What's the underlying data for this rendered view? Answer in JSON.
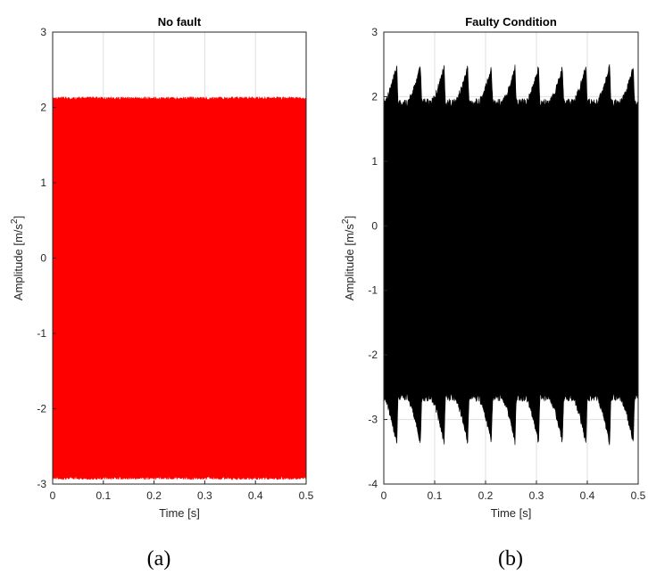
{
  "chart_data": [
    {
      "type": "area",
      "title": "No fault",
      "caption": "(a)",
      "xlabel": "Time [s]",
      "ylabel": "Amplitude [m/s",
      "ylabel_sup": "2",
      "ylabel_close": "]",
      "xlim": [
        0,
        0.5
      ],
      "ylim": [
        -3,
        3
      ],
      "xticks": [
        0,
        0.1,
        0.2,
        0.3,
        0.4,
        0.5
      ],
      "xtick_labels": [
        "0",
        "0.1",
        "0.2",
        "0.3",
        "0.4",
        "0.5"
      ],
      "yticks": [
        -3,
        -2,
        -1,
        0,
        1,
        2,
        3
      ],
      "ytick_labels": [
        "-3",
        "-2",
        "-1",
        "0",
        "1",
        "2",
        "3"
      ],
      "grid": true,
      "color": "#ff0000",
      "series": [
        {
          "envelope_upper": 2.1,
          "envelope_lower": -2.9,
          "impulse_period": 0,
          "impulse_peak_upper": 2.1,
          "impulse_peak_lower": -2.9
        }
      ]
    },
    {
      "type": "area",
      "title": "Faulty Condition",
      "caption": "(b)",
      "xlabel": "Time [s]",
      "ylabel": "Amplitude [m/s",
      "ylabel_sup": "2",
      "ylabel_close": "]",
      "xlim": [
        0,
        0.5
      ],
      "ylim": [
        -4,
        3
      ],
      "xticks": [
        0,
        0.1,
        0.2,
        0.3,
        0.4,
        0.5
      ],
      "xtick_labels": [
        "0",
        "0.1",
        "0.2",
        "0.3",
        "0.4",
        "0.5"
      ],
      "yticks": [
        -4,
        -3,
        -2,
        -1,
        0,
        1,
        2,
        3
      ],
      "ytick_labels": [
        "-4",
        "-3",
        "-2",
        "-1",
        "0",
        "1",
        "2",
        "3"
      ],
      "grid": true,
      "color": "#000000",
      "series": [
        {
          "envelope_upper": 1.85,
          "envelope_lower": -2.6,
          "impulse_period": 0.0465,
          "impulse_peak_upper": 2.4,
          "impulse_peak_lower": -3.3
        }
      ]
    }
  ]
}
